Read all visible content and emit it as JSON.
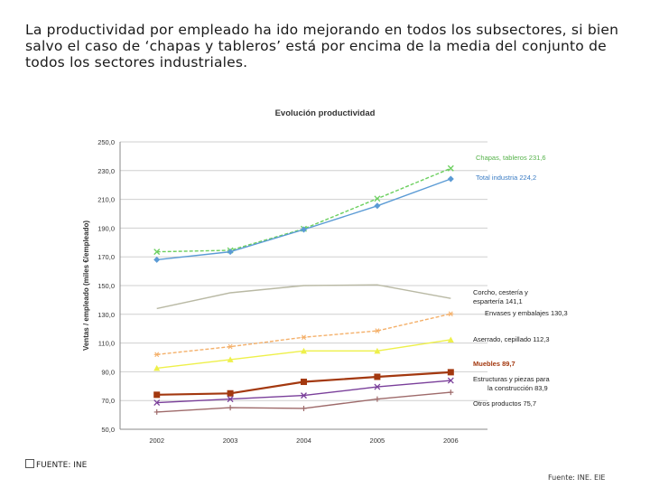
{
  "intro_text": "La productividad por empleado ha ido mejorando en todos los subsectores, si bien salvo el caso de ‘chapas y tableros’ está por encima de la media del conjunto de todos los sectores industriales.",
  "footer": {
    "source_left": "FUENTE:  INE",
    "source_right": "Fuente: INE. EIE"
  },
  "chart_data": {
    "type": "line",
    "title": "Evolución productividad",
    "ylabel": "Ventas / empleado (miles €/empleado)",
    "xlabel": "",
    "categories": [
      "2002",
      "2003",
      "2004",
      "2005",
      "2006"
    ],
    "ylim": [
      50,
      250
    ],
    "yticks": [
      "250,0",
      "230,0",
      "210,0",
      "190,0",
      "170,0",
      "150,0",
      "130,0",
      "110,0",
      "90,0",
      "70,0",
      "50,0"
    ],
    "series": [
      {
        "name": "Chapas, tableros",
        "label": "Chapas, tableros 231,6",
        "color": "#6ccf5f",
        "marker": "x",
        "dash": "4,2",
        "values": [
          173.5,
          174.5,
          189.5,
          210.5,
          231.6
        ]
      },
      {
        "name": "Total industria",
        "label": "Total industria 224,2",
        "color": "#5b9bd5",
        "marker": "diamond",
        "values": [
          168,
          173.5,
          189,
          205.5,
          224.2
        ]
      },
      {
        "name": "Corcho, cestería y espartería",
        "label": "Corcho, cestería y espartería 141,1",
        "color": "#b9b9a4",
        "marker": "none",
        "values": [
          134,
          145,
          150,
          150.5,
          141.1
        ]
      },
      {
        "name": "Envases y embalajes",
        "label": "Envases y embalajes 130,3",
        "color": "#f4b06a",
        "marker": "asterisk",
        "dash": "4,2",
        "values": [
          102,
          107.5,
          114,
          118.5,
          130.3
        ]
      },
      {
        "name": "Aserrado, cepillado",
        "label": "Aserrado, cepillado 112,3",
        "color": "#eef04a",
        "marker": "triangle",
        "values": [
          92.5,
          98.5,
          104.5,
          104.5,
          112.3
        ]
      },
      {
        "name": "Muebles",
        "label": "Muebles 89,7",
        "color": "#a3380f",
        "marker": "square",
        "values": [
          74,
          75,
          83,
          86.5,
          89.7
        ]
      },
      {
        "name": "Estructuras y piezas para la construcción",
        "label": "Estructuras y piezas para la construcción 83,9",
        "color": "#7a3f9a",
        "marker": "x",
        "values": [
          68.5,
          71,
          73.5,
          79.5,
          83.9
        ]
      },
      {
        "name": "Otros productos",
        "label": "Otros productos 75,7",
        "color": "#9e6a6a",
        "marker": "plus",
        "values": [
          62,
          65,
          64.5,
          71,
          75.7
        ]
      }
    ],
    "legend_labels": [
      {
        "lines": [
          "Chapas, tableros 231,6"
        ],
        "color": "#55b24a",
        "bold": false
      },
      {
        "lines": [
          "Total industria 224,2"
        ],
        "color": "#3a7cc4",
        "bold": false
      },
      {
        "lines": [
          "Corcho, cestería y",
          " espartería 141,1"
        ],
        "color": "#222222",
        "bold": false
      },
      {
        "lines": [
          "Envases y embalajes 130,3"
        ],
        "color": "#222222",
        "bold": false
      },
      {
        "lines": [
          "Aserrado, cepillado 112,3"
        ],
        "color": "#222222",
        "bold": false
      },
      {
        "lines": [
          "Muebles 89,7"
        ],
        "color": "#a3380f",
        "bold": true
      },
      {
        "lines": [
          "Estructuras y piezas para",
          "la construcción 83,9"
        ],
        "color": "#222222",
        "bold": false
      },
      {
        "lines": [
          "Otros productos 75,7"
        ],
        "color": "#222222",
        "bold": false
      }
    ]
  }
}
